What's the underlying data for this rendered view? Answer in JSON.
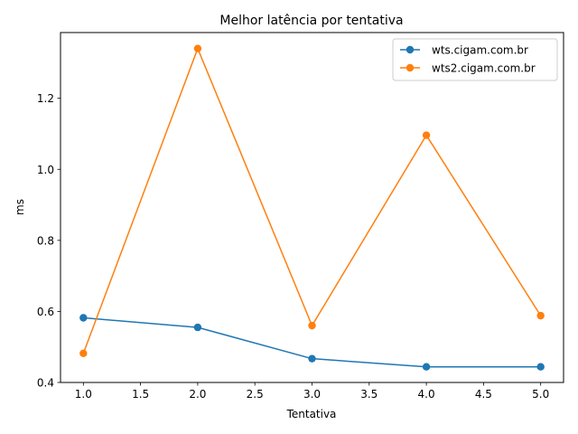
{
  "chart_data": {
    "type": "line",
    "title": "Melhor latência por tentativa",
    "xlabel": "Tentativa",
    "ylabel": "ms",
    "xlim": [
      0.8,
      5.2
    ],
    "ylim": [
      0.4,
      1.385
    ],
    "x_ticks": [
      1.0,
      1.5,
      2.0,
      2.5,
      3.0,
      3.5,
      4.0,
      4.5,
      5.0
    ],
    "x_tick_labels": [
      "1.0",
      "1.5",
      "2.0",
      "2.5",
      "3.0",
      "3.5",
      "4.0",
      "4.5",
      "5.0"
    ],
    "y_ticks": [
      0.4,
      0.6,
      0.8,
      1.0,
      1.2
    ],
    "y_tick_labels": [
      "0.4",
      "0.6",
      "0.8",
      "1.0",
      "1.2"
    ],
    "grid": false,
    "legend_position": "top-right",
    "x": [
      1,
      2,
      3,
      4,
      5
    ],
    "series": [
      {
        "name": "wts.cigam.com.br",
        "color": "#1f77b4",
        "values": [
          0.582,
          0.555,
          0.467,
          0.444,
          0.444
        ]
      },
      {
        "name": "wts2.cigam.com.br",
        "color": "#ff7f0e",
        "values": [
          0.482,
          1.34,
          0.56,
          1.096,
          0.588
        ]
      }
    ]
  }
}
